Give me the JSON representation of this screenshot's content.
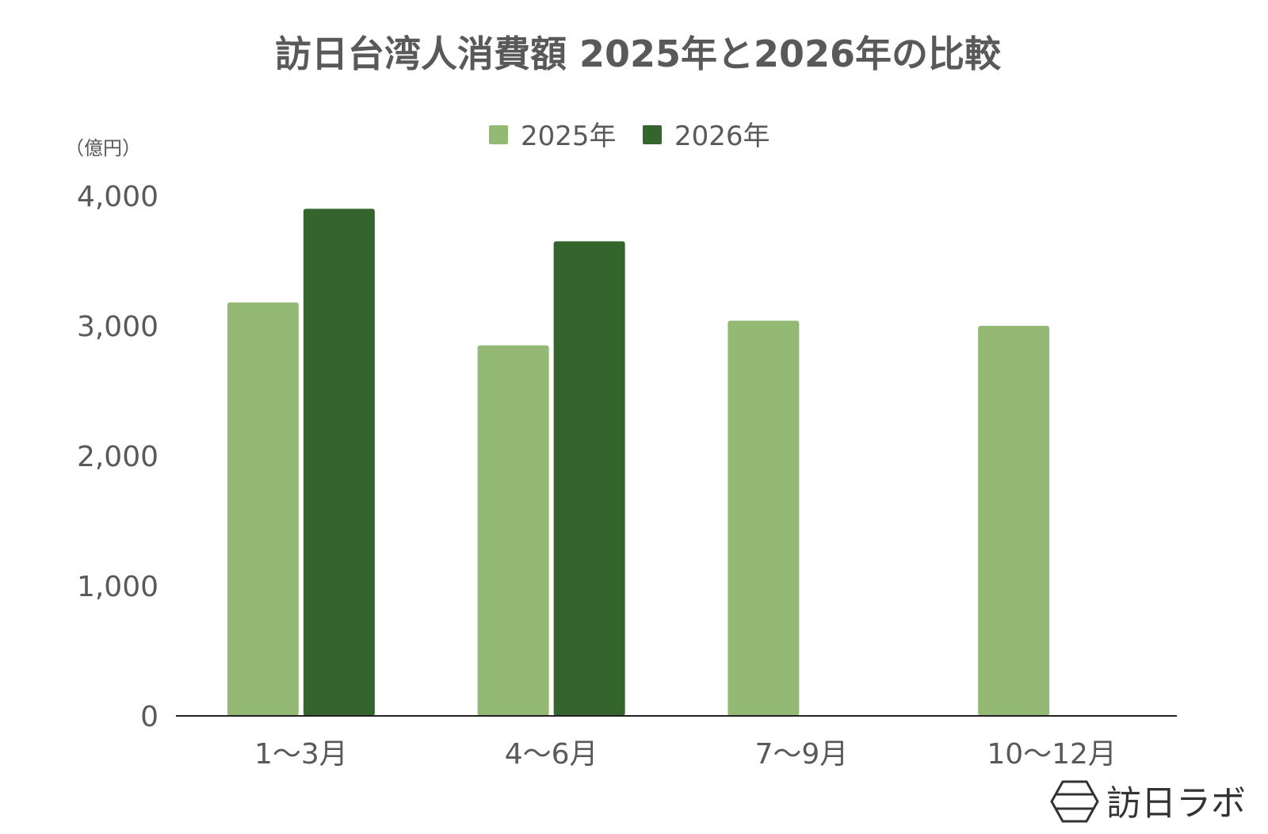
{
  "chart_data": {
    "type": "bar",
    "title": "訪日台湾人消費額 2025年と2026年の比較",
    "unit_label": "（億円）",
    "categories": [
      "1〜3月",
      "4〜6月",
      "7〜9月",
      "10〜12月"
    ],
    "series": [
      {
        "name": "2025年",
        "color": "#93b975",
        "values": [
          3180,
          2850,
          3040,
          3000
        ]
      },
      {
        "name": "2026年",
        "color": "#33652c",
        "values": [
          3900,
          3650,
          null,
          null
        ]
      }
    ],
    "ylim": [
      0,
      4000
    ],
    "y_ticks": [
      0,
      1000,
      2000,
      3000,
      4000
    ],
    "y_tick_labels": [
      "0",
      "1,000",
      "2,000",
      "3,000",
      "4,000"
    ],
    "grid": false,
    "legend_position": "top"
  },
  "branding": {
    "name": "訪日ラボ",
    "icon": "hexagon-logo-icon"
  }
}
